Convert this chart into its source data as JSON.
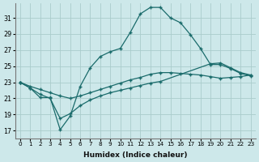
{
  "xlabel": "Humidex (Indice chaleur)",
  "bg_color": "#cde8ea",
  "grid_color": "#aacccc",
  "line_color": "#1a6b6b",
  "xlim": [
    -0.5,
    23.5
  ],
  "ylim": [
    16.0,
    32.8
  ],
  "yticks": [
    17,
    19,
    21,
    23,
    25,
    27,
    29,
    31
  ],
  "xticks": [
    0,
    1,
    2,
    3,
    4,
    5,
    6,
    7,
    8,
    9,
    10,
    11,
    12,
    13,
    14,
    15,
    16,
    17,
    18,
    19,
    20,
    21,
    22,
    23
  ],
  "curve1_x": [
    0,
    1,
    2,
    3,
    4,
    5,
    6,
    7,
    8,
    9,
    10,
    11,
    12,
    13,
    14,
    15,
    16,
    17,
    18,
    19,
    20,
    21,
    22,
    23
  ],
  "curve1_y": [
    23.0,
    22.3,
    21.1,
    21.1,
    17.1,
    18.8,
    22.5,
    24.8,
    26.2,
    26.8,
    27.2,
    29.2,
    31.5,
    32.3,
    32.3,
    31.0,
    30.4,
    28.9,
    27.2,
    25.2,
    25.2,
    24.7,
    24.1,
    23.8
  ],
  "curve2_x": [
    0,
    1,
    2,
    3,
    4,
    5,
    6,
    7,
    8,
    9,
    10,
    11,
    12,
    13,
    14,
    15,
    16,
    17,
    18,
    19,
    20,
    21,
    22,
    23
  ],
  "curve2_y": [
    23.0,
    22.5,
    22.1,
    21.7,
    21.3,
    21.0,
    21.3,
    21.7,
    22.1,
    22.5,
    22.9,
    23.3,
    23.6,
    24.0,
    24.2,
    24.2,
    24.1,
    24.0,
    23.9,
    23.7,
    23.5,
    23.6,
    23.7,
    23.9
  ],
  "curve3_x": [
    0,
    1,
    2,
    3,
    4,
    5,
    6,
    7,
    8,
    9,
    10,
    11,
    12,
    13,
    14,
    19,
    20,
    21,
    22,
    23
  ],
  "curve3_y": [
    23.0,
    22.3,
    21.5,
    21.0,
    18.5,
    19.1,
    20.1,
    20.8,
    21.3,
    21.7,
    22.0,
    22.3,
    22.6,
    22.9,
    23.1,
    25.3,
    25.4,
    24.8,
    24.2,
    23.9
  ]
}
